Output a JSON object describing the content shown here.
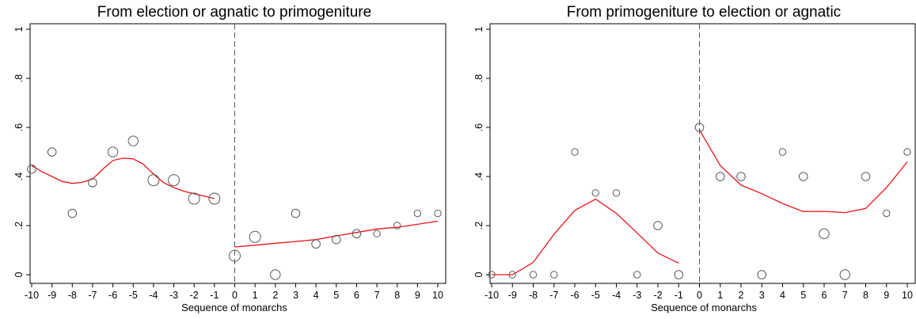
{
  "chart_data": [
    {
      "type": "scatter",
      "title": "From election or agnatic to primogeniture",
      "xlabel": "Sequence of monarchs",
      "ylabel": "",
      "xlim": [
        -10,
        10
      ],
      "ylim": [
        0,
        1
      ],
      "x_ticks": [
        -10,
        -9,
        -8,
        -7,
        -6,
        -5,
        -4,
        -3,
        -2,
        -1,
        0,
        1,
        2,
        3,
        4,
        5,
        6,
        7,
        8,
        9,
        10
      ],
      "x_tick_labels": [
        "-10",
        "-9",
        "-8",
        "-7",
        "-6",
        "-5",
        "-4",
        "-3",
        "-2",
        "-1",
        "0",
        "1",
        "2",
        "3",
        "4",
        "5",
        "6",
        "7",
        "8",
        "9",
        "10"
      ],
      "y_ticks": [
        0,
        0.2,
        0.4,
        0.6,
        0.8,
        1
      ],
      "y_tick_labels": [
        "0",
        ".2",
        ".4",
        ".6",
        ".8",
        "1"
      ],
      "grid": false,
      "vertical_reference_line": 0,
      "points": [
        {
          "x": -10,
          "y": 0.43,
          "size": 2
        },
        {
          "x": -9,
          "y": 0.5,
          "size": 2
        },
        {
          "x": -8,
          "y": 0.25,
          "size": 2
        },
        {
          "x": -7,
          "y": 0.375,
          "size": 2
        },
        {
          "x": -6,
          "y": 0.5,
          "size": 3
        },
        {
          "x": -5,
          "y": 0.545,
          "size": 3
        },
        {
          "x": -4,
          "y": 0.385,
          "size": 4
        },
        {
          "x": -3,
          "y": 0.385,
          "size": 4
        },
        {
          "x": -2,
          "y": 0.31,
          "size": 4
        },
        {
          "x": -1,
          "y": 0.31,
          "size": 4
        },
        {
          "x": 0,
          "y": 0.077,
          "size": 4
        },
        {
          "x": 1,
          "y": 0.154,
          "size": 4
        },
        {
          "x": 2,
          "y": 0.0,
          "size": 3
        },
        {
          "x": 3,
          "y": 0.25,
          "size": 2
        },
        {
          "x": 4,
          "y": 0.125,
          "size": 2
        },
        {
          "x": 5,
          "y": 0.143,
          "size": 2
        },
        {
          "x": 6,
          "y": 0.167,
          "size": 2
        },
        {
          "x": 7,
          "y": 0.167,
          "size": 1
        },
        {
          "x": 8,
          "y": 0.2,
          "size": 1
        },
        {
          "x": 9,
          "y": 0.25,
          "size": 1
        },
        {
          "x": 10,
          "y": 0.25,
          "size": 1
        }
      ],
      "fit_lines": [
        {
          "x": [
            -10,
            -9.5,
            -9,
            -8.5,
            -8,
            -7.5,
            -7,
            -6.5,
            -6,
            -5.5,
            -5,
            -4.5,
            -4,
            -3.5,
            -3,
            -2.5,
            -2,
            -1.5,
            -1
          ],
          "y": [
            0.445,
            0.42,
            0.4,
            0.38,
            0.372,
            0.376,
            0.39,
            0.43,
            0.465,
            0.475,
            0.472,
            0.45,
            0.41,
            0.375,
            0.355,
            0.34,
            0.33,
            0.32,
            0.31
          ]
        },
        {
          "x": [
            0,
            1,
            2,
            3,
            4,
            5,
            6,
            7,
            8,
            9,
            10
          ],
          "y": [
            0.113,
            0.12,
            0.128,
            0.135,
            0.143,
            0.158,
            0.172,
            0.186,
            0.193,
            0.205,
            0.218
          ]
        }
      ],
      "line_color": "#e8141b",
      "marker_color": "#5a5a5a"
    },
    {
      "type": "scatter",
      "title": "From primogeniture to election or agnatic",
      "xlabel": "Sequence of monarchs",
      "ylabel": "",
      "xlim": [
        -10,
        10
      ],
      "ylim": [
        0,
        1
      ],
      "x_ticks": [
        -10,
        -9,
        -8,
        -7,
        -6,
        -5,
        -4,
        -3,
        -2,
        -1,
        0,
        1,
        2,
        3,
        4,
        5,
        6,
        7,
        8,
        9,
        10
      ],
      "x_tick_labels": [
        "-10",
        "-9",
        "-8",
        "-7",
        "-6",
        "-5",
        "-4",
        "-3",
        "-2",
        "-1",
        "0",
        "1",
        "2",
        "3",
        "4",
        "5",
        "6",
        "7",
        "8",
        "9",
        "10"
      ],
      "y_ticks": [
        0,
        0.2,
        0.4,
        0.6,
        0.8,
        1
      ],
      "y_tick_labels": [
        "0",
        ".2",
        ".4",
        ".6",
        ".8",
        "1"
      ],
      "grid": false,
      "vertical_reference_line": 0,
      "points": [
        {
          "x": -10,
          "y": 0.0,
          "size": 1
        },
        {
          "x": -9,
          "y": 0.0,
          "size": 1
        },
        {
          "x": -8,
          "y": 0.0,
          "size": 1
        },
        {
          "x": -7,
          "y": 0.0,
          "size": 1
        },
        {
          "x": -6,
          "y": 0.5,
          "size": 1
        },
        {
          "x": -5,
          "y": 0.333,
          "size": 1
        },
        {
          "x": -4,
          "y": 0.333,
          "size": 1
        },
        {
          "x": -3,
          "y": 0.0,
          "size": 1
        },
        {
          "x": -2,
          "y": 0.2,
          "size": 2
        },
        {
          "x": -1,
          "y": 0.0,
          "size": 2
        },
        {
          "x": 0,
          "y": 0.6,
          "size": 2
        },
        {
          "x": 1,
          "y": 0.4,
          "size": 2
        },
        {
          "x": 2,
          "y": 0.4,
          "size": 2
        },
        {
          "x": 3,
          "y": 0.0,
          "size": 2
        },
        {
          "x": 4,
          "y": 0.5,
          "size": 1
        },
        {
          "x": 5,
          "y": 0.4,
          "size": 2
        },
        {
          "x": 6,
          "y": 0.167,
          "size": 3
        },
        {
          "x": 7,
          "y": 0.0,
          "size": 3
        },
        {
          "x": 8,
          "y": 0.4,
          "size": 2
        },
        {
          "x": 9,
          "y": 0.25,
          "size": 1
        },
        {
          "x": 10,
          "y": 0.5,
          "size": 1
        }
      ],
      "fit_lines": [
        {
          "x": [
            -10,
            -9,
            -8,
            -7,
            -6,
            -5,
            -4,
            -3,
            -2,
            -1
          ],
          "y": [
            0.0,
            0.0,
            0.05,
            0.165,
            0.262,
            0.308,
            0.25,
            0.17,
            0.088,
            0.047
          ]
        },
        {
          "x": [
            0,
            1,
            2,
            3,
            4,
            5,
            6,
            7,
            8,
            9,
            10
          ],
          "y": [
            0.59,
            0.445,
            0.365,
            0.33,
            0.29,
            0.257,
            0.258,
            0.253,
            0.27,
            0.355,
            0.46
          ]
        }
      ],
      "line_color": "#e8141b",
      "marker_color": "#5a5a5a"
    }
  ]
}
